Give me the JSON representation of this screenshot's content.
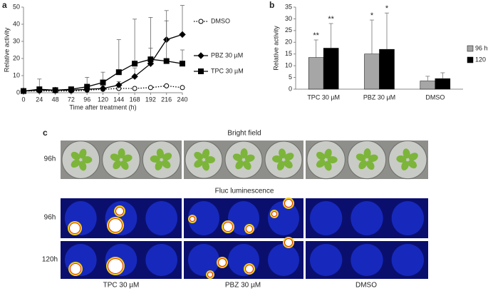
{
  "chart_data": [
    {
      "panel": "a",
      "type": "line",
      "x": [
        0,
        24,
        48,
        72,
        96,
        120,
        144,
        168,
        192,
        216,
        240
      ],
      "xlim": [
        0,
        240
      ],
      "xticks": [
        0,
        24,
        48,
        72,
        96,
        120,
        144,
        168,
        192,
        216,
        240
      ],
      "ylim": [
        0,
        50
      ],
      "yticks": [
        0,
        10,
        20,
        30,
        40,
        50
      ],
      "x_label": "Time after treatment (h)",
      "y_label": "Relative activity",
      "series": [
        {
          "name": "DMSO",
          "color": "#000000",
          "line_style": "dotted",
          "marker": "circle",
          "marker_filled": false,
          "values": [
            1,
            1,
            1,
            1,
            1.5,
            2,
            2.5,
            2.5,
            3,
            4,
            3
          ]
        },
        {
          "name": "PBZ 30 µM",
          "color": "#000000",
          "line_style": "solid",
          "marker": "diamond",
          "marker_filled": true,
          "values": [
            1,
            1.5,
            1.5,
            1.5,
            2,
            2.5,
            4.5,
            9.5,
            17,
            31,
            34
          ],
          "errors": [
            0,
            0.5,
            0.5,
            0.5,
            1,
            1.5,
            2,
            5,
            9,
            11,
            17
          ]
        },
        {
          "name": "TPC 30 µM",
          "color": "#000000",
          "line_style": "solid",
          "marker": "square",
          "marker_filled": true,
          "values": [
            1,
            2,
            1.5,
            2,
            3.5,
            6,
            12,
            17,
            19.5,
            18.5,
            17
          ],
          "errors": [
            0,
            6,
            1.5,
            1,
            5.5,
            6,
            19,
            26,
            24.5,
            29.5,
            8
          ]
        }
      ]
    },
    {
      "panel": "b",
      "type": "bar",
      "categories": [
        "TPC 30 µM",
        "PBZ 30 µM",
        "DMSO"
      ],
      "ylim": [
        0,
        35
      ],
      "yticks": [
        0,
        5,
        10,
        15,
        20,
        25,
        30,
        35
      ],
      "y_label": "Relative activity",
      "series": [
        {
          "name": "96 h",
          "color": "#a6a6a6",
          "values": [
            13.5,
            15,
            3.5
          ],
          "errors": [
            7.5,
            14.5,
            2
          ],
          "significance": [
            "**",
            "*",
            null
          ]
        },
        {
          "name": "120 h",
          "color": "#000000",
          "values": [
            17.5,
            17,
            4.5
          ],
          "errors": [
            10.5,
            15.5,
            2.5
          ],
          "significance": [
            "**",
            "*",
            null
          ]
        }
      ]
    }
  ],
  "panel_c": {
    "panel": "c",
    "sections": [
      {
        "title": "Bright field",
        "rows": [
          "96h"
        ]
      },
      {
        "title": "Fluc luminescence",
        "rows": [
          "96h",
          "120h"
        ]
      }
    ],
    "columns": [
      "TPC 30 µM",
      "PBZ 30 µM",
      "DMSO"
    ]
  }
}
